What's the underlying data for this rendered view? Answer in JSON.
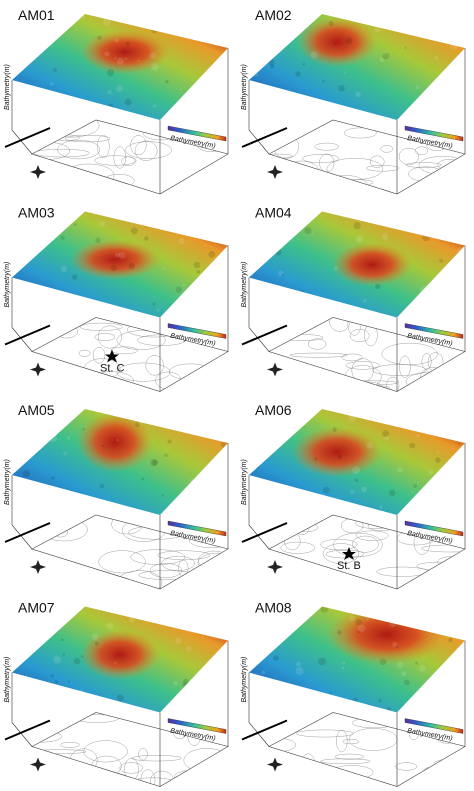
{
  "panels": [
    {
      "label": "AM01",
      "axis_label": "Bathymetry(m)",
      "legend_title": "Bathymetry(m)"
    },
    {
      "label": "AM02",
      "axis_label": "Bathymetry(m)",
      "legend_title": "Bathymetry(m)"
    },
    {
      "label": "AM03",
      "axis_label": "Bathymetry(m)",
      "legend_title": "Bathymetry(m)",
      "station": "St. C"
    },
    {
      "label": "AM04",
      "axis_label": "Bathymetry(m)",
      "legend_title": "Bathymetry(m)"
    },
    {
      "label": "AM05",
      "axis_label": "Bathymetry(m)",
      "legend_title": "Bathymetry(m)"
    },
    {
      "label": "AM06",
      "axis_label": "Bathymetry(m)",
      "legend_title": "Bathymetry(m)",
      "station": "St. B"
    },
    {
      "label": "AM07",
      "axis_label": "Bathymetry(m)",
      "legend_title": "Bathymetry(m)"
    },
    {
      "label": "AM08",
      "axis_label": "Bathymetry(m)",
      "legend_title": "Bathymetry(m)"
    }
  ]
}
